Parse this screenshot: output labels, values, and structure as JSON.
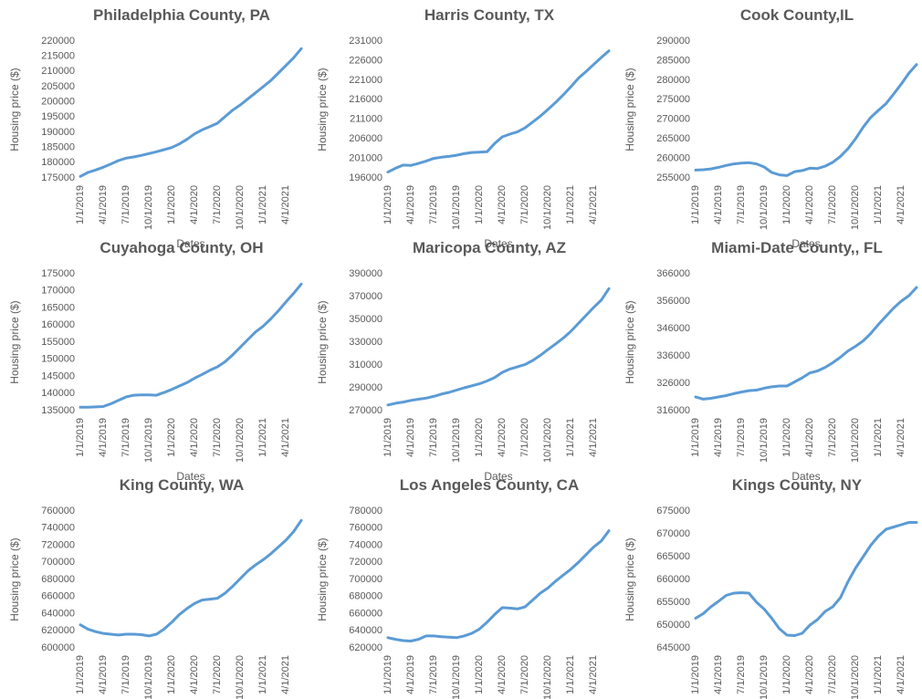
{
  "chart_data": [
    {
      "type": "line",
      "title": "Philadelphia County, PA",
      "x_label": "Dates",
      "y_label": "Housing price ($)",
      "color": "#5b9bd5",
      "categories": [
        "1/1/2019",
        null,
        null,
        "4/1/2019",
        null,
        null,
        "7/1/2019",
        null,
        null,
        "10/1/2019",
        null,
        null,
        "1/1/2020",
        null,
        null,
        "4/1/2020",
        null,
        null,
        "7/1/2020",
        null,
        null,
        "10/1/2020",
        null,
        null,
        "1/1/2021",
        null,
        null,
        "4/1/2021",
        null,
        null
      ],
      "values": [
        175500,
        176800,
        177600,
        178500,
        179600,
        180700,
        181500,
        181900,
        182400,
        183000,
        183600,
        184300,
        185000,
        186200,
        187700,
        189500,
        190800,
        191900,
        193000,
        195200,
        197300,
        199000,
        201000,
        203000,
        205000,
        207000,
        209500,
        212000,
        214500,
        217500
      ],
      "ylim": [
        175000,
        220000
      ],
      "yticks": [
        175000,
        180000,
        185000,
        190000,
        195000,
        200000,
        205000,
        210000,
        215000,
        220000
      ]
    },
    {
      "type": "line",
      "title": "Harris County, TX",
      "x_label": "Dates",
      "y_label": "Housing price ($)",
      "color": "#5b9bd5",
      "categories": [
        "1/1/2019",
        null,
        null,
        "4/1/2019",
        null,
        null,
        "7/1/2019",
        null,
        null,
        "10/1/2019",
        null,
        null,
        "1/1/2020",
        null,
        null,
        "4/1/2020",
        null,
        null,
        "7/1/2020",
        null,
        null,
        "10/1/2020",
        null,
        null,
        "1/1/2021",
        null,
        null,
        "4/1/2021",
        null,
        null
      ],
      "values": [
        197500,
        198500,
        199300,
        199200,
        199700,
        200300,
        201000,
        201300,
        201500,
        201800,
        202200,
        202500,
        202600,
        202700,
        204800,
        206500,
        207200,
        207800,
        208800,
        210300,
        211800,
        213500,
        215300,
        217200,
        219300,
        221500,
        223200,
        225000,
        226800,
        228500
      ],
      "ylim": [
        196000,
        231000
      ],
      "yticks": [
        196000,
        201000,
        206000,
        211000,
        216000,
        221000,
        226000,
        231000
      ]
    },
    {
      "type": "line",
      "title": "Cook County,IL",
      "x_label": "Dates",
      "y_label": "Housing price ($)",
      "color": "#5b9bd5",
      "categories": [
        "1/1/2019",
        null,
        null,
        "4/1/2019",
        null,
        null,
        "7/1/2019",
        null,
        null,
        "10/1/2019",
        null,
        null,
        "1/1/2020",
        null,
        null,
        "4/1/2020",
        null,
        null,
        "7/1/2020",
        null,
        null,
        "10/1/2020",
        null,
        null,
        "1/1/2021",
        null,
        null,
        "4/1/2021",
        null,
        null
      ],
      "values": [
        257000,
        257100,
        257300,
        257700,
        258200,
        258600,
        258800,
        258900,
        258600,
        257800,
        256400,
        255800,
        255600,
        256600,
        256900,
        257500,
        257400,
        258000,
        259000,
        260500,
        262500,
        265000,
        268000,
        270500,
        272300,
        274000,
        276500,
        279000,
        281800,
        284000
      ],
      "ylim": [
        255000,
        290000
      ],
      "yticks": [
        255000,
        260000,
        265000,
        270000,
        275000,
        280000,
        285000,
        290000
      ]
    },
    {
      "type": "line",
      "title": "Cuyahoga County, OH",
      "x_label": "Dates",
      "y_label": "Housing price ($)",
      "color": "#5b9bd5",
      "categories": [
        "1/1/2019",
        null,
        null,
        "4/1/2019",
        null,
        null,
        "7/1/2019",
        null,
        null,
        "10/1/2019",
        null,
        null,
        "1/1/2020",
        null,
        null,
        "4/1/2020",
        null,
        null,
        "7/1/2020",
        null,
        null,
        "10/1/2020",
        null,
        null,
        "1/1/2021",
        null,
        null,
        "4/1/2021",
        null,
        null
      ],
      "values": [
        136000,
        136000,
        136100,
        136200,
        137000,
        138000,
        139000,
        139500,
        139600,
        139600,
        139500,
        140300,
        141200,
        142200,
        143200,
        144500,
        145600,
        146800,
        147800,
        149300,
        151300,
        153500,
        155800,
        158000,
        159700,
        161800,
        164200,
        166800,
        169300,
        172000
      ],
      "ylim": [
        135000,
        175000
      ],
      "yticks": [
        135000,
        140000,
        145000,
        150000,
        155000,
        160000,
        165000,
        170000,
        175000
      ]
    },
    {
      "type": "line",
      "title": "Maricopa County, AZ",
      "x_label": "Dates",
      "y_label": "Housing price ($)",
      "color": "#5b9bd5",
      "categories": [
        "1/1/2019",
        null,
        null,
        "4/1/2019",
        null,
        null,
        "7/1/2019",
        null,
        null,
        "10/1/2019",
        null,
        null,
        "1/1/2020",
        null,
        null,
        "4/1/2020",
        null,
        null,
        "7/1/2020",
        null,
        null,
        "10/1/2020",
        null,
        null,
        "1/1/2021",
        null,
        null,
        "4/1/2021",
        null,
        null
      ],
      "values": [
        275000,
        276500,
        277500,
        279000,
        280000,
        281000,
        282500,
        284500,
        286000,
        288000,
        290000,
        291800,
        293500,
        296000,
        299000,
        303500,
        306500,
        308500,
        310500,
        314000,
        318500,
        323500,
        328500,
        333500,
        339500,
        346500,
        353500,
        360500,
        367000,
        377000
      ],
      "ylim": [
        270000,
        390000
      ],
      "yticks": [
        270000,
        290000,
        310000,
        330000,
        350000,
        370000,
        390000
      ]
    },
    {
      "type": "line",
      "title": "Miami-Date County,, FL",
      "x_label": "Dates",
      "y_label": "Housing price ($)",
      "color": "#5b9bd5",
      "categories": [
        "1/1/2019",
        null,
        null,
        "4/1/2019",
        null,
        null,
        "7/1/2019",
        null,
        null,
        "10/1/2019",
        null,
        null,
        "1/1/2020",
        null,
        null,
        "4/1/2020",
        null,
        null,
        "7/1/2020",
        null,
        null,
        "10/1/2020",
        null,
        null,
        "1/1/2021",
        null,
        null,
        "4/1/2021",
        null,
        null
      ],
      "values": [
        321000,
        320200,
        320500,
        321000,
        321500,
        322200,
        322800,
        323300,
        323500,
        324200,
        324700,
        325000,
        325000,
        326500,
        328000,
        329800,
        330500,
        331800,
        333500,
        335500,
        337800,
        339500,
        341500,
        344200,
        347500,
        350500,
        353500,
        356000,
        358000,
        361000
      ],
      "ylim": [
        316000,
        366000
      ],
      "yticks": [
        316000,
        326000,
        336000,
        346000,
        356000,
        366000
      ]
    },
    {
      "type": "line",
      "title": "King County,  WA",
      "x_label": "Dates",
      "y_label": "Housing price ($)",
      "color": "#5b9bd5",
      "categories": [
        "1/1/2019",
        null,
        null,
        "4/1/2019",
        null,
        null,
        "7/1/2019",
        null,
        null,
        "10/1/2019",
        null,
        null,
        "1/1/2020",
        null,
        null,
        "4/1/2020",
        null,
        null,
        "7/1/2020",
        null,
        null,
        "10/1/2020",
        null,
        null,
        "1/1/2021",
        null,
        null,
        "4/1/2021",
        null,
        null
      ],
      "values": [
        627000,
        622000,
        619000,
        617000,
        616000,
        615000,
        616000,
        616000,
        615500,
        614000,
        616000,
        622000,
        630000,
        639000,
        646000,
        652000,
        656000,
        657000,
        658000,
        664000,
        672000,
        681000,
        690000,
        697000,
        703000,
        710000,
        718000,
        726000,
        736000,
        749000
      ],
      "ylim": [
        600000,
        760000
      ],
      "yticks": [
        600000,
        620000,
        640000,
        660000,
        680000,
        700000,
        720000,
        740000,
        760000
      ]
    },
    {
      "type": "line",
      "title": "Los Angeles County, CA",
      "x_label": "Dates",
      "y_label": "Housing price ($)",
      "color": "#5b9bd5",
      "categories": [
        "1/1/2019",
        null,
        null,
        "4/1/2019",
        null,
        null,
        "7/1/2019",
        null,
        null,
        "10/1/2019",
        null,
        null,
        "1/1/2020",
        null,
        null,
        "4/1/2020",
        null,
        null,
        "7/1/2020",
        null,
        null,
        "10/1/2020",
        null,
        null,
        "1/1/2021",
        null,
        null,
        "4/1/2021",
        null,
        null
      ],
      "values": [
        632000,
        630000,
        628500,
        628000,
        630000,
        634000,
        634000,
        633000,
        632500,
        632000,
        634000,
        637000,
        642000,
        650000,
        659000,
        667000,
        666500,
        665500,
        668000,
        676000,
        684000,
        690000,
        698000,
        705000,
        712000,
        720000,
        729000,
        738000,
        745000,
        757000
      ],
      "ylim": [
        620000,
        780000
      ],
      "yticks": [
        620000,
        640000,
        660000,
        680000,
        700000,
        720000,
        740000,
        760000,
        780000
      ]
    },
    {
      "type": "line",
      "title": "Kings County, NY",
      "x_label": "Dates",
      "y_label": "Housing price ($)",
      "color": "#5b9bd5",
      "categories": [
        "1/1/2019",
        null,
        null,
        "4/1/2019",
        null,
        null,
        "7/1/2019",
        null,
        null,
        "10/1/2019",
        null,
        null,
        "1/1/2020",
        null,
        null,
        "4/1/2020",
        null,
        null,
        "7/1/2020",
        null,
        null,
        "10/1/2020",
        null,
        null,
        "1/1/2021",
        null,
        null,
        "4/1/2021",
        null,
        null
      ],
      "values": [
        651500,
        652500,
        654000,
        655200,
        656500,
        657000,
        657100,
        657000,
        655000,
        653500,
        651500,
        649200,
        647800,
        647700,
        648200,
        650000,
        651200,
        653000,
        654000,
        656000,
        659500,
        662500,
        665000,
        667500,
        669500,
        671000,
        671500,
        672000,
        672500,
        672500
      ],
      "ylim": [
        645000,
        675000
      ],
      "yticks": [
        645000,
        650000,
        655000,
        660000,
        665000,
        670000,
        675000
      ]
    }
  ]
}
